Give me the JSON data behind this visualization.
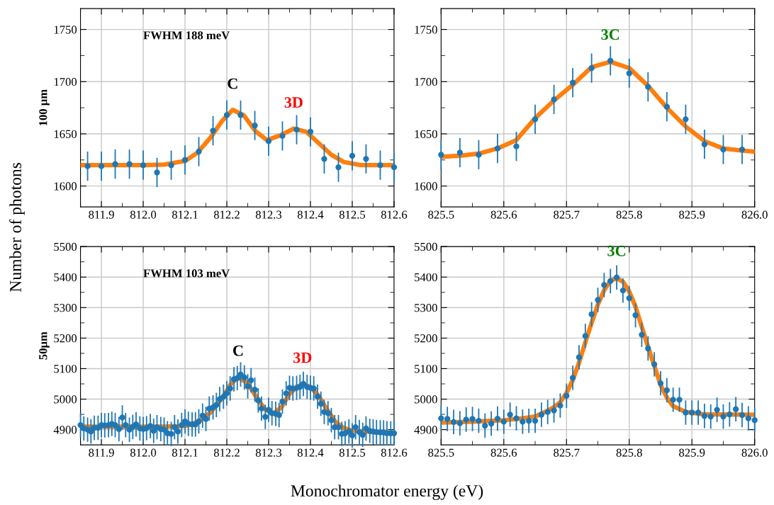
{
  "chart_data": [
    {
      "type": "scatter",
      "ylabel": "100 μm",
      "annotations": [
        "FWHM 188 meV",
        {
          "text": "C",
          "x": 812.214,
          "y": 1673
        },
        {
          "text": "3D",
          "x": 812.36,
          "y": 1655
        }
      ],
      "xlim": [
        811.85,
        812.6
      ],
      "xticks": [
        {
          "value": 811.85,
          "label": null
        },
        811.9,
        {
          "value": 811.95,
          "label": null
        },
        {
          "value": 812.0,
          "label": "812.0"
        },
        {
          "value": 812.05,
          "label": null
        },
        812.1,
        {
          "value": 812.15,
          "label": null
        },
        812.2,
        {
          "value": 812.25,
          "label": null
        },
        812.3,
        {
          "value": 812.35,
          "label": null
        },
        812.4,
        {
          "value": 812.45,
          "label": null
        },
        812.5,
        {
          "value": 812.55,
          "label": null
        },
        812.6
      ],
      "ylim": [
        1580,
        1770
      ],
      "yticks": [
        1600,
        {
          "value": 1625,
          "label": null
        },
        1650,
        {
          "value": 1675,
          "label": null
        },
        1700,
        {
          "value": 1725,
          "label": null
        },
        1750
      ],
      "grid": true,
      "series": [
        {
          "marker": "circle",
          "color": "#1f77b4",
          "x": [
            811.867,
            811.9,
            811.933,
            811.967,
            812.0,
            812.033,
            812.067,
            812.1,
            812.133,
            812.167,
            812.2,
            812.233,
            812.267,
            812.3,
            812.333,
            812.367,
            812.4,
            812.433,
            812.467,
            812.5,
            812.533,
            812.567,
            812.6
          ],
          "values": [
            1619,
            1619,
            1621,
            1621,
            1620,
            1613,
            1620,
            1625,
            1633,
            1653,
            1668,
            1668,
            1658,
            1643,
            1648,
            1654,
            1652,
            1626,
            1618,
            1629,
            1626,
            1620,
            1618
          ],
          "errors": [
            14,
            14,
            14,
            14,
            14,
            14,
            14,
            14,
            14,
            14,
            14,
            14,
            14,
            14,
            14,
            14,
            14,
            14,
            14,
            14,
            14,
            14,
            14
          ]
        },
        {
          "type": "line",
          "color": "#ff7f0e",
          "x": [
            811.85,
            812.0,
            812.05,
            812.1,
            812.13,
            812.16,
            812.19,
            812.214,
            812.24,
            812.27,
            812.296,
            812.33,
            812.36,
            812.39,
            812.42,
            812.45,
            812.48,
            812.52,
            812.6
          ],
          "values": [
            1620,
            1620,
            1620.5,
            1624,
            1632,
            1646,
            1663,
            1673,
            1668,
            1652,
            1644,
            1649,
            1655,
            1652,
            1641,
            1630,
            1623,
            1620,
            1620
          ]
        }
      ]
    },
    {
      "type": "scatter",
      "annotations": [
        {
          "text": "3C",
          "x": 825.77,
          "y": 1720
        }
      ],
      "xlim": [
        825.5,
        826.0
      ],
      "xticks": [
        825.5,
        {
          "value": 825.55,
          "label": null
        },
        825.6,
        {
          "value": 825.65,
          "label": null
        },
        825.7,
        {
          "value": 825.75,
          "label": null
        },
        825.8,
        {
          "value": 825.85,
          "label": null
        },
        825.9,
        {
          "value": 825.95,
          "label": null
        },
        {
          "value": 826.0,
          "label": "826.0"
        }
      ],
      "ylim": [
        1580,
        1770
      ],
      "yticks": [
        1600,
        {
          "value": 1625,
          "label": null
        },
        1650,
        {
          "value": 1675,
          "label": null
        },
        1700,
        {
          "value": 1725,
          "label": null
        },
        1750
      ],
      "grid": true,
      "series": [
        {
          "marker": "circle",
          "color": "#1f77b4",
          "x": [
            825.5,
            825.53,
            825.56,
            825.59,
            825.62,
            825.65,
            825.68,
            825.71,
            825.74,
            825.77,
            825.8,
            825.83,
            825.86,
            825.89,
            825.92,
            825.95,
            825.98
          ],
          "values": [
            1630,
            1632,
            1630,
            1636,
            1638,
            1664,
            1683,
            1699,
            1713,
            1720,
            1708,
            1695,
            1676,
            1664,
            1640,
            1635,
            1635
          ],
          "errors": [
            14,
            14,
            14,
            14,
            14,
            14,
            14,
            14,
            14,
            14,
            14,
            14,
            14,
            14,
            14,
            14,
            14
          ]
        },
        {
          "type": "line",
          "color": "#ff7f0e",
          "x": [
            825.5,
            825.53,
            825.56,
            825.59,
            825.62,
            825.65,
            825.68,
            825.71,
            825.74,
            825.77,
            825.8,
            825.83,
            825.86,
            825.89,
            825.92,
            825.95,
            825.98,
            826.0
          ],
          "values": [
            1628,
            1629,
            1631,
            1636,
            1644,
            1665,
            1682,
            1697,
            1714,
            1719,
            1713,
            1696,
            1675,
            1657,
            1643,
            1636,
            1634,
            1633
          ]
        }
      ]
    },
    {
      "type": "scatter",
      "ylabel": "50μm",
      "xlabel": "Monochromator energy (eV)",
      "annotations": [
        "FWHM 103 meV",
        "Number of photons",
        {
          "text": "C",
          "x": 812.227,
          "y": 5073
        },
        {
          "text": "3D",
          "x": 812.381,
          "y": 5050
        }
      ],
      "xlim": [
        811.85,
        812.6
      ],
      "xticks": [
        {
          "value": 811.85,
          "label": null
        },
        811.9,
        {
          "value": 811.95,
          "label": null
        },
        {
          "value": 812.0,
          "label": "812.0"
        },
        {
          "value": 812.05,
          "label": null
        },
        812.1,
        {
          "value": 812.15,
          "label": null
        },
        812.2,
        {
          "value": 812.25,
          "label": null
        },
        812.3,
        {
          "value": 812.35,
          "label": null
        },
        812.4,
        {
          "value": 812.45,
          "label": null
        },
        812.5,
        {
          "value": 812.55,
          "label": null
        },
        812.6
      ],
      "ylim": [
        4850,
        5500
      ],
      "yticks": [
        4900,
        {
          "value": 4950,
          "label": null
        },
        5000,
        {
          "value": 5050,
          "label": null
        },
        5100,
        {
          "value": 5150,
          "label": null
        },
        5200,
        {
          "value": 5250,
          "label": null
        },
        5300,
        {
          "value": 5350,
          "label": null
        },
        5400,
        {
          "value": 5450,
          "label": null
        },
        5500
      ],
      "grid": true,
      "series": [
        {
          "marker": "circle",
          "color": "#1f77b4",
          "x": [
            811.85,
            811.858,
            811.867,
            811.875,
            811.883,
            811.892,
            811.9,
            811.908,
            811.917,
            811.925,
            811.933,
            811.942,
            811.95,
            811.958,
            811.967,
            811.975,
            811.983,
            811.992,
            812.0,
            812.008,
            812.017,
            812.025,
            812.033,
            812.042,
            812.05,
            812.058,
            812.067,
            812.075,
            812.083,
            812.092,
            812.1,
            812.108,
            812.117,
            812.125,
            812.133,
            812.142,
            812.15,
            812.158,
            812.167,
            812.175,
            812.183,
            812.192,
            812.2,
            812.208,
            812.217,
            812.225,
            812.233,
            812.242,
            812.25,
            812.258,
            812.267,
            812.275,
            812.283,
            812.292,
            812.3,
            812.308,
            812.317,
            812.325,
            812.333,
            812.342,
            812.35,
            812.358,
            812.367,
            812.375,
            812.383,
            812.392,
            812.4,
            812.408,
            812.417,
            812.425,
            812.433,
            812.442,
            812.45,
            812.458,
            812.467,
            812.475,
            812.483,
            812.492,
            812.5,
            812.508,
            812.517,
            812.525,
            812.533,
            812.542,
            812.55,
            812.558,
            812.567,
            812.575,
            812.583,
            812.592,
            812.6
          ],
          "values": [
            4915,
            4904,
            4900,
            4894,
            4906,
            4906,
            4915,
            4914,
            4915,
            4919,
            4915,
            4902,
            4940,
            4915,
            4900,
            4909,
            4917,
            4904,
            4902,
            4905,
            4912,
            4896,
            4908,
            4902,
            4900,
            4888,
            4886,
            4908,
            4894,
            4915,
            4927,
            4919,
            4917,
            4917,
            4927,
            4946,
            4935,
            4969,
            4973,
            4981,
            5000,
            5008,
            5019,
            5035,
            5065,
            5069,
            5081,
            5071,
            5042,
            5062,
            5031,
            4996,
            4969,
            4942,
            4965,
            4954,
            4952,
            4948,
            4992,
            5019,
            5037,
            5035,
            5037,
            5040,
            5050,
            5040,
            5037,
            5035,
            5008,
            4985,
            4958,
            4954,
            4931,
            4908,
            4908,
            4886,
            4888,
            4894,
            4881,
            4908,
            4892,
            4883,
            4904,
            4896,
            4894,
            4892,
            4891,
            4891,
            4888,
            4888,
            4888
          ],
          "errors": [
            40,
            40,
            40,
            40,
            40,
            40,
            40,
            40,
            40,
            40,
            40,
            40,
            40,
            40,
            40,
            40,
            40,
            40,
            40,
            40,
            40,
            40,
            40,
            40,
            40,
            40,
            40,
            40,
            40,
            40,
            40,
            40,
            40,
            40,
            40,
            40,
            40,
            40,
            40,
            40,
            40,
            40,
            40,
            40,
            40,
            40,
            40,
            40,
            40,
            40,
            40,
            40,
            40,
            40,
            40,
            40,
            40,
            40,
            40,
            40,
            40,
            40,
            40,
            40,
            40,
            40,
            40,
            40,
            40,
            40,
            40,
            40,
            40,
            40,
            40,
            40,
            40,
            40,
            40,
            40,
            40,
            40,
            40,
            40,
            40,
            40,
            40,
            40,
            40,
            40,
            40
          ]
        },
        {
          "type": "line",
          "color": "#ff7f0e",
          "x": [
            811.85,
            812.05,
            812.1,
            812.13,
            812.16,
            812.19,
            812.21,
            812.227,
            812.25,
            812.27,
            812.29,
            812.31,
            812.33,
            812.35,
            812.37,
            812.381,
            812.4,
            812.42,
            812.44,
            812.46,
            812.48,
            812.5,
            812.55,
            812.6
          ],
          "values": [
            4910,
            4910,
            4912,
            4925,
            4955,
            5005,
            5050,
            5072,
            5052,
            5008,
            4968,
            4952,
            4972,
            5018,
            5042,
            5048,
            5040,
            5010,
            4965,
            4925,
            4905,
            4897,
            4892,
            4890
          ]
        }
      ]
    },
    {
      "type": "scatter",
      "annotations": [
        {
          "text": "3C",
          "x": 825.78,
          "y": 5400
        }
      ],
      "xlim": [
        825.5,
        826.0
      ],
      "xticks": [
        825.5,
        {
          "value": 825.55,
          "label": null
        },
        825.6,
        {
          "value": 825.65,
          "label": null
        },
        825.7,
        {
          "value": 825.75,
          "label": null
        },
        825.8,
        {
          "value": 825.85,
          "label": null
        },
        825.9,
        {
          "value": 825.95,
          "label": null
        },
        {
          "value": 826.0,
          "label": "826.0"
        }
      ],
      "ylim": [
        4850,
        5500
      ],
      "yticks": [
        4900,
        {
          "value": 4950,
          "label": null
        },
        5000,
        {
          "value": 5050,
          "label": null
        },
        5100,
        {
          "value": 5150,
          "label": null
        },
        5200,
        {
          "value": 5250,
          "label": null
        },
        5300,
        {
          "value": 5350,
          "label": null
        },
        5400,
        {
          "value": 5450,
          "label": null
        },
        5500
      ],
      "grid": true,
      "series": [
        {
          "marker": "circle",
          "color": "#1f77b4",
          "x": [
            825.5,
            825.51,
            825.52,
            825.53,
            825.54,
            825.55,
            825.56,
            825.57,
            825.58,
            825.59,
            825.6,
            825.61,
            825.62,
            825.63,
            825.64,
            825.65,
            825.66,
            825.67,
            825.68,
            825.69,
            825.7,
            825.71,
            825.72,
            825.73,
            825.74,
            825.75,
            825.76,
            825.77,
            825.78,
            825.79,
            825.8,
            825.81,
            825.82,
            825.83,
            825.84,
            825.85,
            825.86,
            825.87,
            825.88,
            825.89,
            825.9,
            825.91,
            825.92,
            825.93,
            825.94,
            825.95,
            825.96,
            825.97,
            825.98,
            825.99,
            826.0
          ],
          "values": [
            4937,
            4935,
            4925,
            4921,
            4933,
            4935,
            4929,
            4913,
            4920,
            4936,
            4926,
            4949,
            4937,
            4926,
            4929,
            4929,
            4949,
            4958,
            4963,
            4979,
            5011,
            5070,
            5137,
            5207,
            5278,
            5325,
            5374,
            5387,
            5399,
            5356,
            5331,
            5275,
            5211,
            5166,
            5114,
            5052,
            5029,
            4998,
            4998,
            4956,
            4956,
            4956,
            4945,
            4943,
            4965,
            4943,
            4950,
            4967,
            4948,
            4937,
            4931
          ],
          "errors": [
            40,
            40,
            40,
            40,
            40,
            40,
            40,
            40,
            40,
            40,
            40,
            40,
            40,
            40,
            40,
            40,
            40,
            40,
            40,
            40,
            40,
            40,
            40,
            40,
            40,
            40,
            40,
            40,
            40,
            40,
            40,
            40,
            40,
            40,
            40,
            40,
            40,
            40,
            40,
            40,
            40,
            40,
            40,
            40,
            40,
            40,
            40,
            40,
            40,
            40,
            40
          ]
        },
        {
          "type": "line",
          "color": "#ff7f0e",
          "x": [
            825.5,
            825.55,
            825.6,
            825.63,
            825.65,
            825.67,
            825.68,
            825.69,
            825.7,
            825.71,
            825.72,
            825.73,
            825.74,
            825.75,
            825.76,
            825.77,
            825.78,
            825.79,
            825.8,
            825.81,
            825.82,
            825.83,
            825.84,
            825.85,
            825.86,
            825.87,
            825.89,
            825.92,
            826.0
          ],
          "values": [
            4923,
            4926,
            4931,
            4937,
            4943,
            4962,
            4974,
            4990,
            5020,
            5063,
            5120,
            5186,
            5250,
            5310,
            5357,
            5388,
            5396,
            5385,
            5353,
            5303,
            5237,
            5171,
            5109,
            5047,
            5005,
            4977,
            4958,
            4950,
            4949
          ]
        }
      ]
    }
  ]
}
